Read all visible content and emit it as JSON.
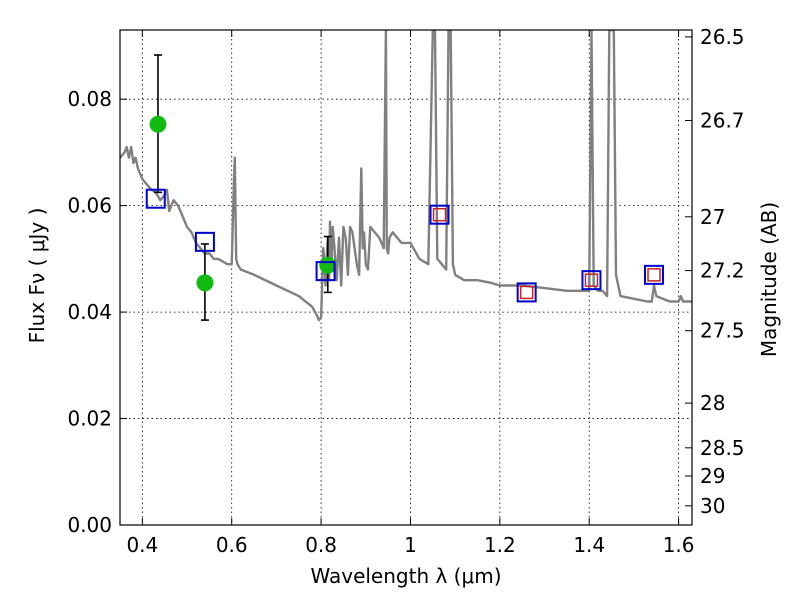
{
  "chart_data": {
    "type": "scatter",
    "title": "",
    "xlabel": "Wavelength  λ (μm)",
    "ylabel": "Flux  Fν  ( μJy )",
    "ylabel_right": "Magnitude (AB)",
    "xlim": [
      0.35,
      1.63
    ],
    "ylim": [
      0.0,
      0.093
    ],
    "grid": true,
    "x_ticks": [
      0.4,
      0.6,
      0.8,
      1.0,
      1.2,
      1.4,
      1.6
    ],
    "x_tick_labels": [
      "0.4",
      "0.6",
      "0.8",
      "1",
      "1.2",
      "1.4",
      "1.6"
    ],
    "y_ticks": [
      0.0,
      0.02,
      0.04,
      0.06,
      0.08
    ],
    "y_tick_labels": [
      "0.00",
      "0.02",
      "0.04",
      "0.06",
      "0.08"
    ],
    "right_ticks": [
      {
        "flux": 0.0917,
        "label": "26.5"
      },
      {
        "flux": 0.076,
        "label": "26.7"
      },
      {
        "flux": 0.0579,
        "label": "27"
      },
      {
        "flux": 0.0478,
        "label": "27.2"
      },
      {
        "flux": 0.0365,
        "label": "27.5"
      },
      {
        "flux": 0.0229,
        "label": "28"
      },
      {
        "flux": 0.0145,
        "label": "28.5"
      },
      {
        "flux": 0.0092,
        "label": "29"
      },
      {
        "flux": 0.0036,
        "label": "30"
      }
    ],
    "series": [
      {
        "kind": "line",
        "color": "#808080",
        "x": [
          0.35,
          0.36,
          0.365,
          0.37,
          0.375,
          0.38,
          0.385,
          0.39,
          0.395,
          0.4,
          0.41,
          0.42,
          0.43,
          0.44,
          0.45,
          0.455,
          0.46,
          0.465,
          0.47,
          0.48,
          0.49,
          0.5,
          0.51,
          0.52,
          0.53,
          0.54,
          0.55,
          0.56,
          0.57,
          0.58,
          0.59,
          0.6,
          0.605,
          0.607,
          0.61,
          0.613,
          0.62,
          0.65,
          0.7,
          0.75,
          0.78,
          0.79,
          0.795,
          0.8,
          0.805,
          0.81,
          0.812,
          0.815,
          0.818,
          0.82,
          0.823,
          0.826,
          0.83,
          0.835,
          0.84,
          0.845,
          0.85,
          0.855,
          0.86,
          0.865,
          0.87,
          0.875,
          0.88,
          0.885,
          0.89,
          0.893,
          0.896,
          0.9,
          0.905,
          0.91,
          0.92,
          0.93,
          0.94,
          0.945,
          0.947,
          0.95,
          0.953,
          0.96,
          0.97,
          0.98,
          1.0,
          1.02,
          1.04,
          1.05,
          1.055,
          1.06,
          1.07,
          1.08,
          1.085,
          1.09,
          1.095,
          1.1,
          1.12,
          1.15,
          1.18,
          1.2,
          1.25,
          1.3,
          1.35,
          1.4,
          1.405,
          1.41,
          1.42,
          1.43,
          1.44,
          1.445,
          1.45,
          1.455,
          1.46,
          1.47,
          1.5,
          1.53,
          1.54,
          1.545,
          1.55,
          1.58,
          1.6,
          1.605,
          1.61,
          1.62,
          1.63
        ],
        "y": [
          0.069,
          0.07,
          0.071,
          0.069,
          0.071,
          0.068,
          0.069,
          0.067,
          0.066,
          0.065,
          0.064,
          0.063,
          0.0625,
          0.061,
          0.062,
          0.063,
          0.059,
          0.06,
          0.061,
          0.06,
          0.058,
          0.056,
          0.055,
          0.053,
          0.052,
          0.051,
          0.051,
          0.05,
          0.05,
          0.0495,
          0.049,
          0.049,
          0.065,
          0.069,
          0.05,
          0.049,
          0.048,
          0.047,
          0.045,
          0.043,
          0.041,
          0.0395,
          0.0385,
          0.039,
          0.052,
          0.045,
          0.05,
          0.054,
          0.046,
          0.057,
          0.048,
          0.056,
          0.052,
          0.046,
          0.054,
          0.045,
          0.056,
          0.054,
          0.047,
          0.056,
          0.055,
          0.052,
          0.049,
          0.047,
          0.067,
          0.052,
          0.055,
          0.049,
          0.048,
          0.056,
          0.055,
          0.054,
          0.052,
          0.093,
          0.052,
          0.051,
          0.054,
          0.055,
          0.054,
          0.053,
          0.053,
          0.05,
          0.049,
          0.093,
          0.093,
          0.05,
          0.049,
          0.048,
          0.093,
          0.093,
          0.049,
          0.047,
          0.046,
          0.046,
          0.0455,
          0.045,
          0.045,
          0.0445,
          0.044,
          0.044,
          0.093,
          0.045,
          0.044,
          0.044,
          0.043,
          0.093,
          0.093,
          0.093,
          0.047,
          0.043,
          0.0425,
          0.042,
          0.042,
          0.045,
          0.043,
          0.042,
          0.042,
          0.043,
          0.042,
          0.042,
          0.042
        ],
        "clip": true
      },
      {
        "kind": "markers",
        "shape": "circle",
        "color": "#11bb11",
        "x": [
          0.435,
          0.54,
          0.815
        ],
        "y": [
          0.0753,
          0.0455,
          0.0488
        ],
        "yerr_low": [
          0.0625,
          0.0385,
          0.0437
        ],
        "yerr_high": [
          0.0883,
          0.0528,
          0.0542
        ]
      },
      {
        "kind": "markers",
        "shape": "square-open",
        "color": "#0000cc",
        "x": [
          0.43,
          0.54,
          0.81,
          1.065,
          1.26,
          1.405,
          1.545
        ],
        "y": [
          0.0613,
          0.0532,
          0.0477,
          0.0583,
          0.0437,
          0.046,
          0.047
        ]
      },
      {
        "kind": "markers",
        "shape": "square-open-small",
        "color": "#cc2222",
        "x": [
          1.065,
          1.26,
          1.405,
          1.545
        ],
        "y": [
          0.0583,
          0.0437,
          0.046,
          0.047
        ]
      }
    ]
  }
}
